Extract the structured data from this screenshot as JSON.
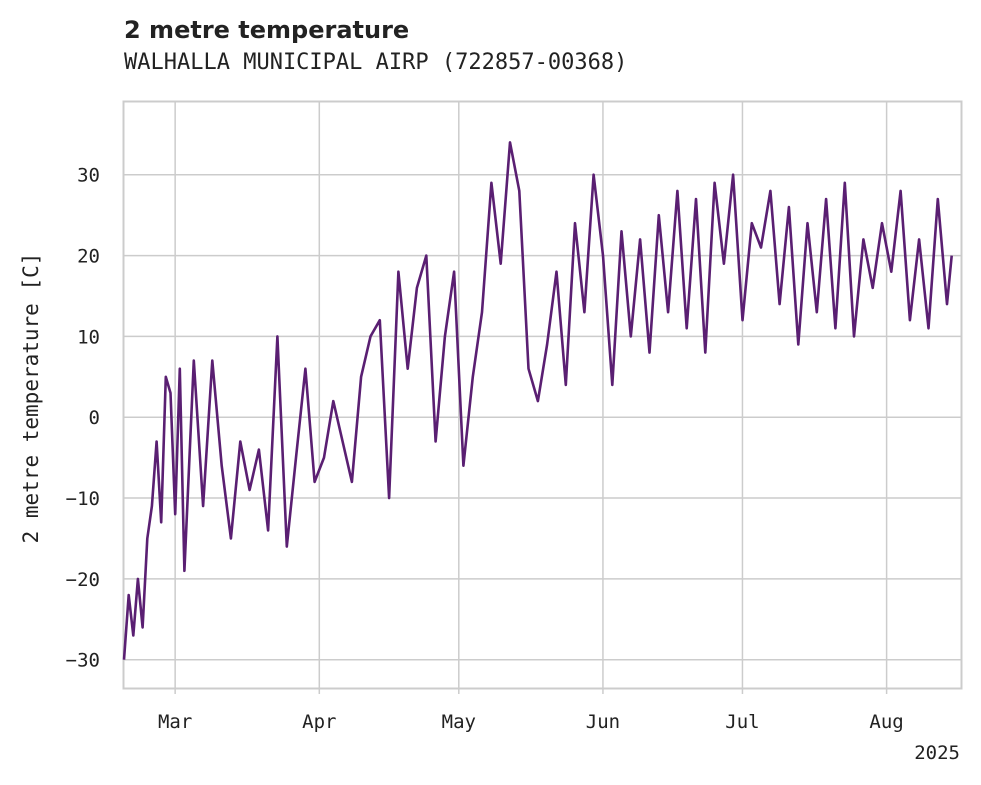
{
  "chart_data": {
    "type": "line",
    "title": "2 metre temperature",
    "subtitle": "WALHALLA MUNICIPAL AIRP (722857-00368)",
    "xlabel": "",
    "ylabel": "2 metre temperature [C]",
    "xlim": [
      "2025-02-18",
      "2025-08-17"
    ],
    "ylim": [
      -33.5,
      39
    ],
    "x_ticks": [
      "Mar",
      "Apr",
      "May",
      "Jun",
      "Jul",
      "Aug"
    ],
    "x_tick_dates": [
      "2025-03-01",
      "2025-04-01",
      "2025-05-01",
      "2025-06-01",
      "2025-07-01",
      "2025-08-01"
    ],
    "x_year_label": "2025",
    "y_ticks": [
      30,
      20,
      10,
      0,
      -10,
      -20,
      -30
    ],
    "grid": true,
    "legend": "none",
    "color": "#5a1f72",
    "series": [
      {
        "x": [
          "2025-02-18",
          "2025-02-19",
          "2025-02-20",
          "2025-02-21",
          "2025-02-22",
          "2025-02-23",
          "2025-02-24",
          "2025-02-25",
          "2025-02-26",
          "2025-02-27",
          "2025-02-28",
          "2025-03-01",
          "2025-03-02",
          "2025-03-03",
          "2025-03-05",
          "2025-03-07",
          "2025-03-09",
          "2025-03-11",
          "2025-03-13",
          "2025-03-15",
          "2025-03-17",
          "2025-03-19",
          "2025-03-21",
          "2025-03-23",
          "2025-03-25",
          "2025-03-27",
          "2025-03-29",
          "2025-03-31",
          "2025-04-02",
          "2025-04-04",
          "2025-04-06",
          "2025-04-08",
          "2025-04-10",
          "2025-04-12",
          "2025-04-14",
          "2025-04-16",
          "2025-04-18",
          "2025-04-20",
          "2025-04-22",
          "2025-04-24",
          "2025-04-26",
          "2025-04-28",
          "2025-04-30",
          "2025-05-02",
          "2025-05-04",
          "2025-05-06",
          "2025-05-08",
          "2025-05-10",
          "2025-05-12",
          "2025-05-14",
          "2025-05-16",
          "2025-05-18",
          "2025-05-20",
          "2025-05-22",
          "2025-05-24",
          "2025-05-26",
          "2025-05-28",
          "2025-05-30",
          "2025-06-01",
          "2025-06-03",
          "2025-06-05",
          "2025-06-07",
          "2025-06-09",
          "2025-06-11",
          "2025-06-13",
          "2025-06-15",
          "2025-06-17",
          "2025-06-19",
          "2025-06-21",
          "2025-06-23",
          "2025-06-25",
          "2025-06-27",
          "2025-06-29",
          "2025-07-01",
          "2025-07-03",
          "2025-07-05",
          "2025-07-07",
          "2025-07-09",
          "2025-07-11",
          "2025-07-13",
          "2025-07-15",
          "2025-07-17",
          "2025-07-19",
          "2025-07-21",
          "2025-07-23",
          "2025-07-25",
          "2025-07-27",
          "2025-07-29",
          "2025-07-31",
          "2025-08-02",
          "2025-08-04",
          "2025-08-06",
          "2025-08-08",
          "2025-08-10",
          "2025-08-12",
          "2025-08-14",
          "2025-08-15"
        ],
        "values": [
          -30,
          -22,
          -27,
          -20,
          -26,
          -15,
          -11,
          -3,
          -13,
          5,
          3,
          -12,
          6,
          -19,
          7,
          -11,
          7,
          -6,
          -15,
          -3,
          -9,
          -4,
          -14,
          10,
          -16,
          -5,
          6,
          -8,
          -5,
          2,
          -3,
          -8,
          5,
          10,
          12,
          -10,
          18,
          6,
          16,
          20,
          -3,
          10,
          18,
          -6,
          5,
          13,
          29,
          19,
          34,
          28,
          6,
          2,
          9,
          18,
          4,
          24,
          13,
          30,
          20,
          4,
          23,
          10,
          22,
          8,
          25,
          13,
          28,
          11,
          27,
          8,
          29,
          19,
          30,
          12,
          24,
          21,
          28,
          14,
          26,
          9,
          24,
          13,
          27,
          11,
          29,
          10,
          22,
          16,
          24,
          18,
          28,
          12,
          22,
          11,
          27,
          14,
          20
        ]
      }
    ]
  }
}
